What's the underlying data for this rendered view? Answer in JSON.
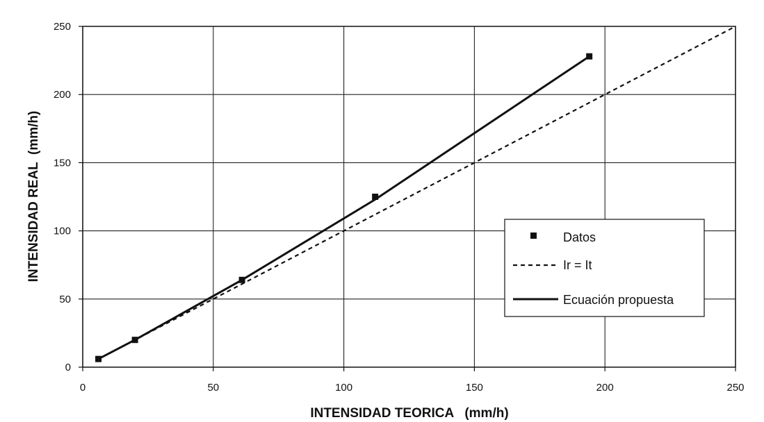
{
  "chart_data": {
    "type": "line",
    "title": "",
    "xlabel": "INTENSIDAD TEORICA   (mm/h)",
    "ylabel": "INTENSIDAD REAL  (mm/h)",
    "xlim": [
      0,
      250
    ],
    "ylim": [
      0,
      250
    ],
    "x_ticks": [
      0,
      50,
      100,
      150,
      200,
      250
    ],
    "y_ticks": [
      0,
      50,
      100,
      150,
      200,
      250
    ],
    "grid": true,
    "legend_position": "right",
    "series": [
      {
        "name": "Datos",
        "style": "markers",
        "color": "#111111",
        "points": [
          [
            6,
            6
          ],
          [
            20,
            20
          ],
          [
            61,
            64
          ],
          [
            112,
            125
          ],
          [
            194,
            228
          ]
        ]
      },
      {
        "name": "Ir = It",
        "style": "dashed",
        "color": "#111111",
        "points": [
          [
            6,
            6
          ],
          [
            250,
            250
          ]
        ]
      },
      {
        "name": "Ecuación propuesta",
        "style": "solid",
        "color": "#111111",
        "points": [
          [
            6,
            6
          ],
          [
            20,
            20
          ],
          [
            61,
            64
          ],
          [
            112,
            123
          ],
          [
            194,
            228
          ]
        ]
      }
    ]
  }
}
